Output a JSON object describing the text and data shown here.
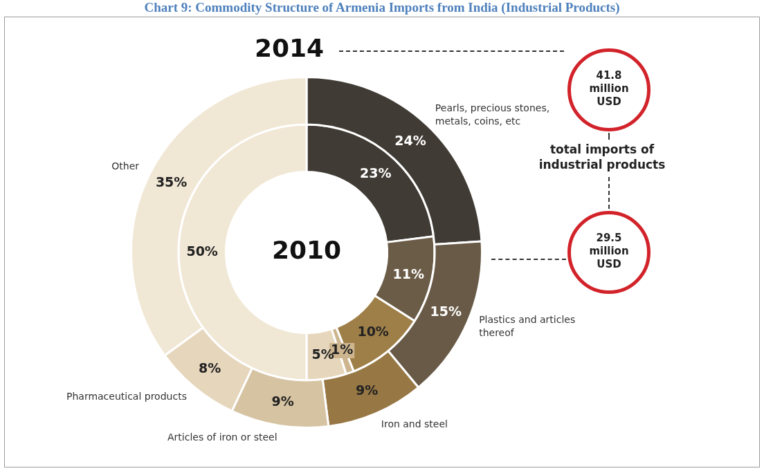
{
  "chart_data": {
    "type": "donut",
    "title": "Chart 9: Commodity Structure of Armenia Imports from India (Industrial Products)",
    "categories": [
      "Pearls, precious stones, metals, coins, etc",
      "Plastics and articles thereof",
      "Iron and steel",
      "Articles of iron or steel",
      "Pharmaceutical products",
      "Other"
    ],
    "series": [
      {
        "name": "2014",
        "values": [
          24,
          15,
          9,
          9,
          8,
          35
        ],
        "value_labels": [
          "24%",
          "15%",
          "9%",
          "9%",
          "8%",
          "35%"
        ],
        "colors": [
          "#403b34",
          "#685a47",
          "#977744",
          "#d6c3a2",
          "#e6d6bc",
          "#f1e7d5"
        ]
      },
      {
        "name": "2010",
        "values": [
          23,
          11,
          10,
          1,
          5,
          50
        ],
        "value_labels": [
          "23%",
          "11%",
          "10%",
          "1%",
          "5%",
          "50%"
        ],
        "colors": [
          "#403b34",
          "#6b5c48",
          "#9f7f48",
          "#cdb68f",
          "#e6d6bc",
          "#f1e7d5"
        ]
      }
    ],
    "annotations": [
      "41.8 million USD",
      "total imports of industrial products",
      "29.5 million USD"
    ],
    "legend": false
  }
}
